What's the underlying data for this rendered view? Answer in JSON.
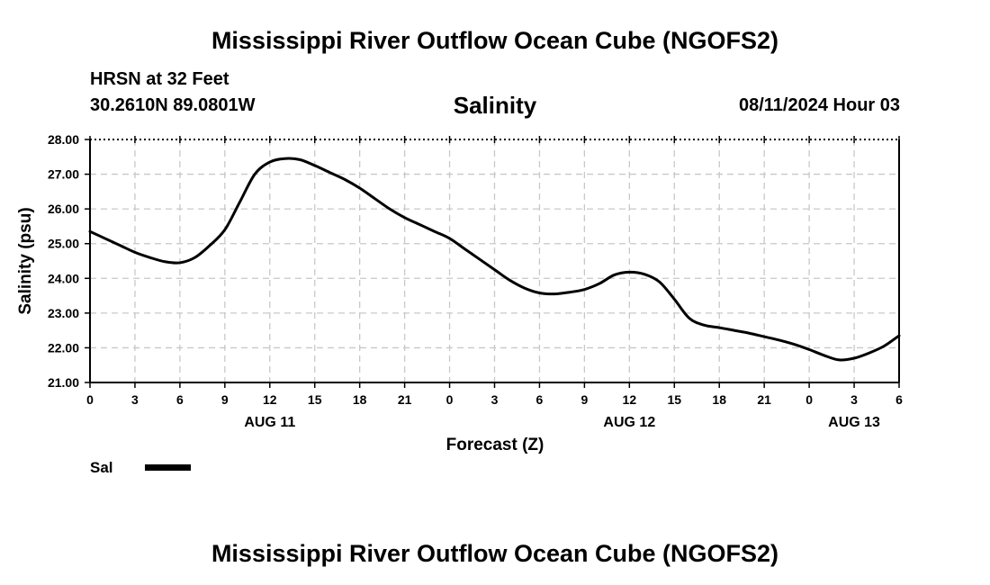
{
  "header": {
    "title": "Mississippi River Outflow Ocean Cube (NGOFS2)",
    "station": "HRSN at 32 Feet",
    "coords": "30.2610N  89.0801W",
    "subtitle": "Salinity",
    "datestamp": "08/11/2024 Hour 03"
  },
  "footer": {
    "title": "Mississippi River Outflow Ocean Cube (NGOFS2)"
  },
  "legend": {
    "label": "Sal",
    "color": "#000000"
  },
  "colors": {
    "line": "#000000",
    "grid": "#c8c8c8",
    "axis": "#000000"
  },
  "chart_data": {
    "type": "line",
    "title": "Salinity",
    "xlabel": "Forecast (Z)",
    "ylabel": "Salinity (psu)",
    "ylim": [
      21.0,
      28.0
    ],
    "xlim": [
      0,
      54
    ],
    "x_unit": "hours from 00Z AUG 11",
    "yticks": [
      21.0,
      22.0,
      23.0,
      24.0,
      25.0,
      26.0,
      27.0,
      28.0
    ],
    "ytick_labels": [
      "21.00",
      "22.00",
      "23.00",
      "24.00",
      "25.00",
      "26.00",
      "27.00",
      "28.00"
    ],
    "xticks": [
      0,
      3,
      6,
      9,
      12,
      15,
      18,
      21,
      24,
      27,
      30,
      33,
      36,
      39,
      42,
      45,
      48,
      51,
      54
    ],
    "xtick_labels": [
      "0",
      "3",
      "6",
      "9",
      "12",
      "15",
      "18",
      "21",
      "0",
      "3",
      "6",
      "9",
      "12",
      "15",
      "18",
      "21",
      "0",
      "3",
      "6"
    ],
    "day_labels": [
      {
        "x": 12,
        "label": "AUG 11"
      },
      {
        "x": 36,
        "label": "AUG 12"
      },
      {
        "x": 51,
        "label": "AUG 13"
      }
    ],
    "grid": true,
    "legend": "bottom-left",
    "series": [
      {
        "name": "Sal",
        "x": [
          0,
          1,
          2,
          3,
          4,
          5,
          6,
          7,
          8,
          9,
          10,
          11,
          12,
          13,
          14,
          15,
          16,
          17,
          18,
          19,
          20,
          21,
          22,
          23,
          24,
          25,
          26,
          27,
          28,
          29,
          30,
          31,
          32,
          33,
          34,
          35,
          36,
          37,
          38,
          39,
          40,
          41,
          42,
          43,
          44,
          45,
          46,
          47,
          48,
          49,
          50,
          51,
          52,
          53,
          54
        ],
        "values": [
          25.35,
          25.15,
          24.95,
          24.75,
          24.6,
          24.48,
          24.45,
          24.6,
          24.95,
          25.4,
          26.2,
          27.0,
          27.35,
          27.45,
          27.42,
          27.25,
          27.05,
          26.85,
          26.6,
          26.3,
          26.0,
          25.75,
          25.55,
          25.35,
          25.15,
          24.85,
          24.55,
          24.25,
          23.95,
          23.72,
          23.58,
          23.55,
          23.6,
          23.68,
          23.85,
          24.1,
          24.18,
          24.12,
          23.9,
          23.4,
          22.85,
          22.65,
          22.58,
          22.5,
          22.42,
          22.32,
          22.22,
          22.1,
          21.95,
          21.78,
          21.65,
          21.7,
          21.85,
          22.05,
          22.35
        ]
      }
    ]
  }
}
